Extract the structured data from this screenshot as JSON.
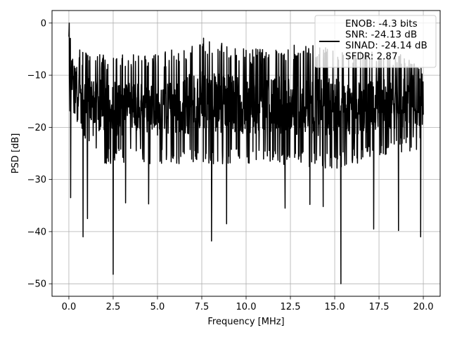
{
  "chart_data": {
    "type": "line",
    "title": "",
    "xlabel": "Frequency [MHz]",
    "ylabel": "PSD [dB]",
    "xlim": [
      -0.95,
      20.95
    ],
    "ylim": [
      -52.4,
      2.4
    ],
    "x_ticks": [
      0,
      2.5,
      5,
      7.5,
      10,
      12.5,
      15,
      17.5,
      20
    ],
    "x_tick_labels": [
      "0.0",
      "2.5",
      "5.0",
      "7.5",
      "10.0",
      "12.5",
      "15.0",
      "17.5",
      "20.0"
    ],
    "y_ticks": [
      0,
      -10,
      -20,
      -30,
      -40,
      -50
    ],
    "y_tick_labels": [
      "0",
      "−10",
      "−20",
      "−30",
      "−40",
      "−50"
    ],
    "grid": true,
    "legend_position": "top-right",
    "legend_lines": [
      "ENOB: -4.3 bits",
      "SNR: -24.13 dB",
      "SINAD: -24.14 dB",
      "SFDR: 2.87"
    ],
    "series": [
      {
        "color": "#000000",
        "x_start": 0.0,
        "x_end": 20.0,
        "envelope_upper": [
          [
            0,
            0
          ],
          [
            0.5,
            -5
          ],
          [
            2,
            -6
          ],
          [
            5,
            -6
          ],
          [
            7.6,
            -3
          ],
          [
            10,
            -5
          ],
          [
            13,
            -4
          ],
          [
            16,
            -5
          ],
          [
            19,
            -6
          ],
          [
            20,
            -9
          ]
        ],
        "envelope_lower": [
          [
            0,
            -18
          ],
          [
            2,
            -27
          ],
          [
            5,
            -27
          ],
          [
            10,
            -27
          ],
          [
            15,
            -28
          ],
          [
            20,
            -24
          ]
        ],
        "notable_points": [
          {
            "x": 0.02,
            "y": 0.0
          },
          {
            "x": 0.1,
            "y": -33.5
          },
          {
            "x": 0.8,
            "y": -41.0
          },
          {
            "x": 1.05,
            "y": -37.5
          },
          {
            "x": 2.5,
            "y": -48.2
          },
          {
            "x": 3.2,
            "y": -34.5
          },
          {
            "x": 4.5,
            "y": -34.7
          },
          {
            "x": 7.6,
            "y": -2.9
          },
          {
            "x": 8.05,
            "y": -41.8
          },
          {
            "x": 8.9,
            "y": -38.5
          },
          {
            "x": 12.2,
            "y": -35.5
          },
          {
            "x": 13.6,
            "y": -34.8
          },
          {
            "x": 14.35,
            "y": -35.2
          },
          {
            "x": 15.35,
            "y": -50.0
          },
          {
            "x": 17.2,
            "y": -39.5
          },
          {
            "x": 18.6,
            "y": -39.8
          },
          {
            "x": 19.85,
            "y": -41.0
          }
        ]
      }
    ]
  }
}
